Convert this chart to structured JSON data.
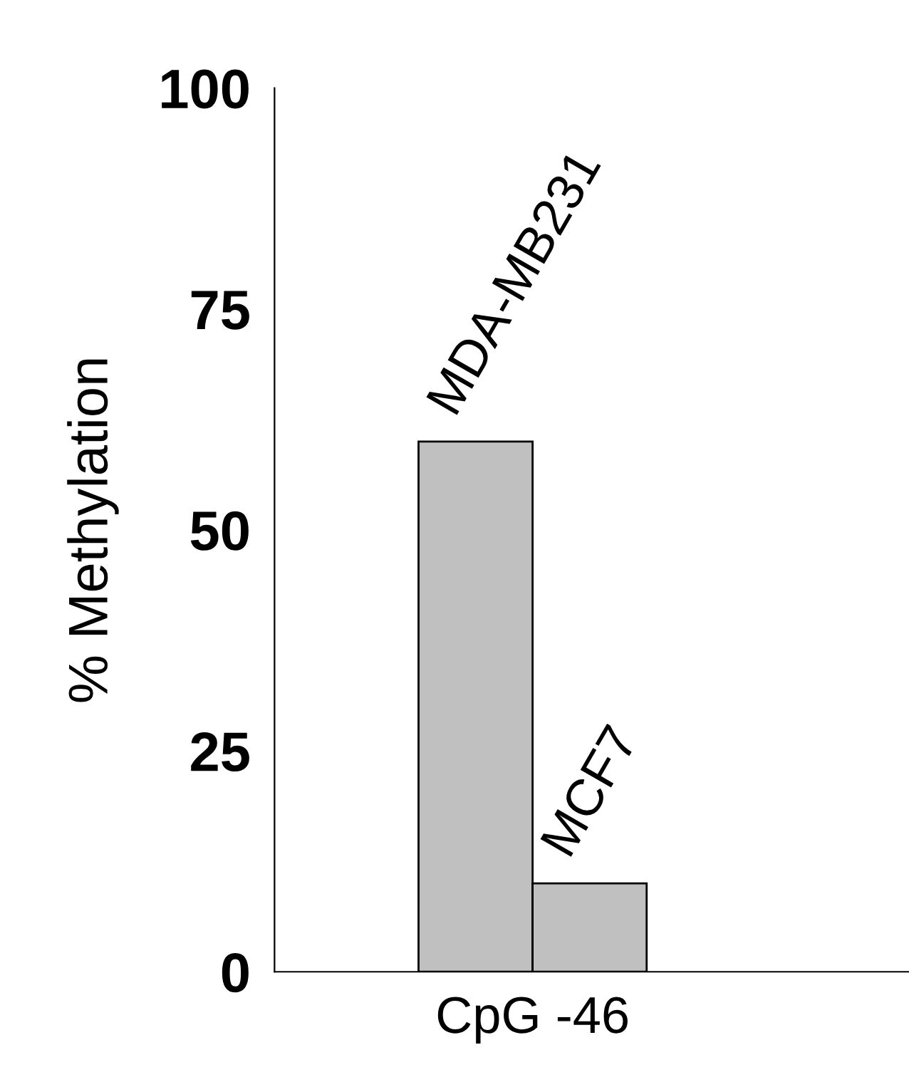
{
  "chart_data": {
    "type": "bar",
    "ylabel": "% Methylation",
    "categories": [
      "CpG -46"
    ],
    "series": [
      {
        "name": "MDA-MB231",
        "color": "#c0c0c0",
        "values": [
          60
        ]
      },
      {
        "name": "MCF7",
        "color": "#c0c0c0",
        "values": [
          10
        ]
      }
    ],
    "ylim": [
      0,
      100
    ],
    "yticks": [
      0,
      25,
      50,
      75,
      100
    ],
    "grid": false,
    "legend": false
  }
}
